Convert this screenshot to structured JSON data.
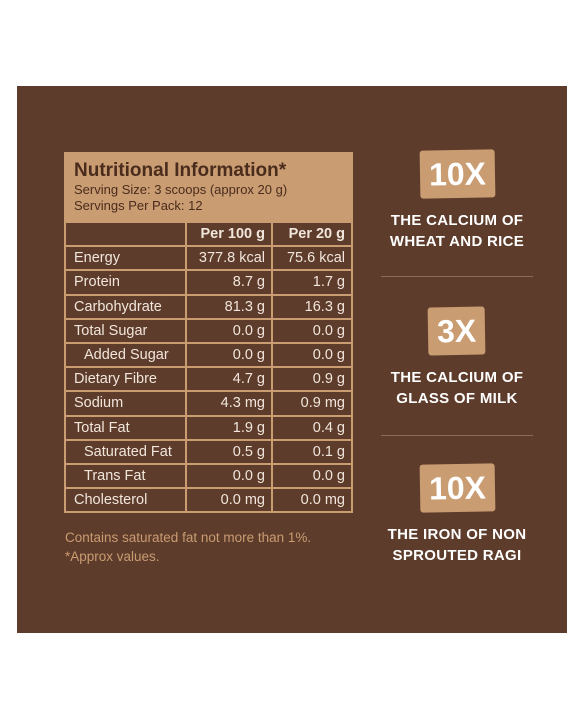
{
  "nutrition": {
    "title": "Nutritional Information*",
    "serving_size": "Serving Size: 3 scoops (approx 20 g)",
    "servings_per_pack": "Servings Per Pack: 12",
    "col1": "Per 100 g",
    "col2": "Per 20 g",
    "rows": [
      {
        "name": "Energy",
        "per100": "377.8 kcal",
        "per20": "75.6 kcal"
      },
      {
        "name": "Protein",
        "per100": "8.7 g",
        "per20": "1.7 g"
      },
      {
        "name": "Carbohydrate",
        "per100": "81.3 g",
        "per20": "16.3 g"
      },
      {
        "name": "Total Sugar",
        "per100": "0.0 g",
        "per20": "0.0 g"
      },
      {
        "name": "Added Sugar",
        "per100": "0.0 g",
        "per20": "0.0 g"
      },
      {
        "name": "Dietary Fibre",
        "per100": "4.7 g",
        "per20": "0.9 g"
      },
      {
        "name": "Sodium",
        "per100": "4.3 mg",
        "per20": "0.9 mg"
      },
      {
        "name": "Total Fat",
        "per100": "1.9 g",
        "per20": "0.4 g"
      },
      {
        "name": "Saturated Fat",
        "per100": "0.5 g",
        "per20": "0.1 g"
      },
      {
        "name": "Trans Fat",
        "per100": "0.0 g",
        "per20": "0.0 g"
      },
      {
        "name": "Cholesterol",
        "per100": "0.0 mg",
        "per20": "0.0 mg"
      }
    ]
  },
  "notes": {
    "line1": "Contains saturated fat not more than 1%.",
    "line2": "*Approx values."
  },
  "claims": [
    {
      "badge": "10X",
      "line1": "THE CALCIUM OF",
      "line2": "WHEAT AND RICE"
    },
    {
      "badge": "3X",
      "line1": "THE CALCIUM OF",
      "line2": "GLASS OF MILK"
    },
    {
      "badge": "10X",
      "line1": "THE IRON OF NON",
      "line2": "SPROUTED RAGI"
    }
  ],
  "colors": {
    "panel": "#5e3c2b",
    "accent": "#c99c72",
    "text": "#f1e6dc"
  }
}
